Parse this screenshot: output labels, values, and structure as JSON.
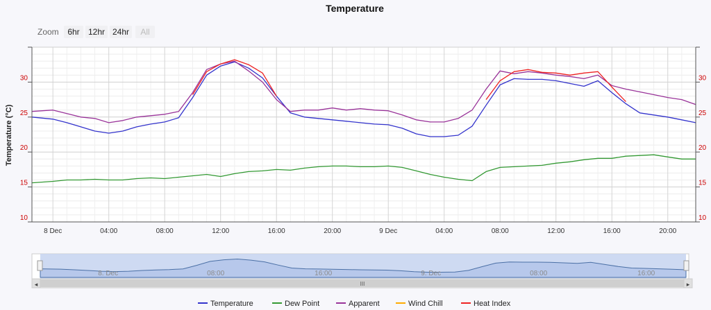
{
  "chart_data": {
    "type": "line",
    "title": "Temperature",
    "ylabel": "Temperature (°C)",
    "ylim": [
      10,
      35
    ],
    "yticks_left": [
      "10",
      "15",
      "20",
      "25",
      "30"
    ],
    "yticks_right": [
      "10",
      "15",
      "20",
      "25",
      "30"
    ],
    "x_start": "8 Dec 00:00",
    "x_end": "9 Dec 22:00",
    "xticks": [
      {
        "h": 0,
        "label": "8 Dec"
      },
      {
        "h": 4,
        "label": "04:00"
      },
      {
        "h": 8,
        "label": "08:00"
      },
      {
        "h": 12,
        "label": "12:00"
      },
      {
        "h": 16,
        "label": "16:00"
      },
      {
        "h": 20,
        "label": "20:00"
      },
      {
        "h": 24,
        "label": "9 Dec"
      },
      {
        "h": 28,
        "label": "04:00"
      },
      {
        "h": 32,
        "label": "08:00"
      },
      {
        "h": 36,
        "label": "12:00"
      },
      {
        "h": 40,
        "label": "16:00"
      },
      {
        "h": 44,
        "label": "20:00"
      }
    ],
    "grid": true,
    "legend_position": "bottom",
    "x_hours": [
      -1.5,
      0,
      1,
      2,
      3,
      4,
      5,
      6,
      7,
      8,
      9,
      10,
      11,
      12,
      13,
      14,
      15,
      16,
      17,
      18,
      19,
      20,
      21,
      22,
      23,
      24,
      25,
      26,
      27,
      28,
      29,
      30,
      31,
      32,
      33,
      34,
      35,
      36,
      37,
      38,
      39,
      40,
      41,
      42,
      43,
      44,
      45,
      46
    ],
    "series": [
      {
        "name": "Temperature",
        "color": "#3333cc",
        "values": [
          25.0,
          24.7,
          24.2,
          23.6,
          23.0,
          22.7,
          23.0,
          23.6,
          24.0,
          24.3,
          24.9,
          27.8,
          31.0,
          32.3,
          32.9,
          32.0,
          30.6,
          28.0,
          25.6,
          25.0,
          24.8,
          24.6,
          24.4,
          24.2,
          24.0,
          23.9,
          23.4,
          22.6,
          22.2,
          22.2,
          22.4,
          23.7,
          26.7,
          29.6,
          30.5,
          30.4,
          30.4,
          30.2,
          29.8,
          29.4,
          30.2,
          28.5,
          26.9,
          25.6,
          25.3,
          25.0,
          24.6,
          24.2
        ]
      },
      {
        "name": "Dew Point",
        "color": "#339933",
        "values": [
          15.6,
          15.8,
          16.0,
          16.0,
          16.1,
          16.0,
          16.0,
          16.2,
          16.3,
          16.2,
          16.4,
          16.6,
          16.8,
          16.5,
          16.9,
          17.2,
          17.3,
          17.5,
          17.4,
          17.7,
          17.9,
          18.0,
          18.0,
          17.9,
          17.9,
          18.0,
          17.8,
          17.3,
          16.8,
          16.4,
          16.1,
          15.9,
          17.2,
          17.8,
          17.9,
          18.0,
          18.1,
          18.4,
          18.6,
          18.9,
          19.1,
          19.1,
          19.4,
          19.5,
          19.6,
          19.3,
          19.0,
          19.0
        ]
      },
      {
        "name": "Apparent",
        "color": "#993399",
        "values": [
          25.8,
          26.0,
          25.5,
          25.0,
          24.8,
          24.2,
          24.5,
          25.0,
          25.2,
          25.4,
          25.8,
          28.5,
          31.8,
          32.6,
          33.0,
          31.6,
          30.0,
          27.5,
          25.8,
          26.0,
          26.0,
          26.3,
          26.0,
          26.2,
          26.0,
          25.9,
          25.3,
          24.6,
          24.3,
          24.3,
          24.8,
          26.0,
          29.0,
          31.6,
          31.2,
          31.5,
          31.3,
          31.0,
          30.8,
          30.5,
          31.0,
          29.5,
          29.0,
          28.6,
          28.2,
          27.8,
          27.5,
          26.8
        ]
      },
      {
        "name": "Wind Chill",
        "color": "#ffaa00",
        "values": []
      },
      {
        "name": "Heat Index",
        "color": "#ee2222",
        "values": [
          null,
          null,
          null,
          null,
          null,
          null,
          null,
          null,
          null,
          null,
          null,
          28.2,
          31.5,
          32.6,
          33.2,
          32.5,
          31.3,
          28.0,
          null,
          null,
          null,
          null,
          null,
          null,
          null,
          null,
          null,
          null,
          null,
          null,
          null,
          null,
          27.5,
          30.2,
          31.5,
          31.8,
          31.4,
          31.3,
          31.0,
          31.3,
          31.5,
          29.3,
          27.2,
          null,
          null,
          null,
          null,
          null
        ]
      }
    ]
  },
  "toolbar": {
    "zoom_label": "Zoom",
    "buttons": [
      "6hr",
      "12hr",
      "24hr",
      "All"
    ]
  },
  "navigator": {
    "labels": [
      {
        "h": 4,
        "label": "8. Dec"
      },
      {
        "h": 16,
        "label": "08:00"
      },
      {
        "h": 28,
        "label": "16:00"
      },
      {
        "h": 40,
        "label": "9. Dec"
      },
      {
        "h": 52,
        "label": "08:00"
      },
      {
        "h": 64,
        "label": "16:00"
      }
    ],
    "handle_glyph": "III",
    "left_arrow": "◂",
    "right_arrow": "▸"
  },
  "colors": {
    "axis_tick_text": "#cc0000",
    "navigator_fill": "#c5d4f0",
    "navigator_line": "#4a6fa5"
  }
}
